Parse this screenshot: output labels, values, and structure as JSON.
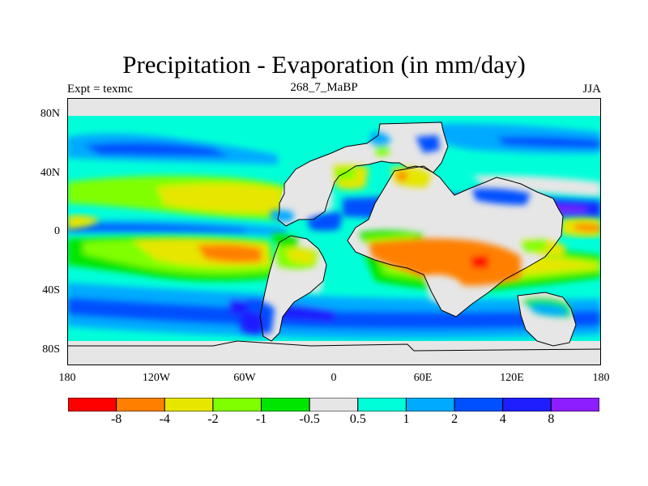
{
  "header": {
    "title": "Precipitation - Evaporation (in mm/day)",
    "subtitle": "268_7_MaBP",
    "left_label": "Expt = texmc",
    "right_label": "JJA"
  },
  "axes": {
    "y_ticks": [
      "80N",
      "40N",
      "0",
      "40S",
      "80S"
    ],
    "x_ticks": [
      "180",
      "120W",
      "60W",
      "0",
      "60E",
      "120E",
      "180"
    ]
  },
  "colorbar": {
    "colors": [
      "#ff0000",
      "#ff8000",
      "#e6e600",
      "#80ff00",
      "#00e600",
      "#e6e6e6",
      "#00ffd9",
      "#00aaff",
      "#0050ff",
      "#1e1eff",
      "#8c1eff"
    ],
    "labels": [
      "-8",
      "-4",
      "-2",
      "-1",
      "-0.5",
      "0.5",
      "1",
      "2",
      "4",
      "8"
    ]
  }
}
